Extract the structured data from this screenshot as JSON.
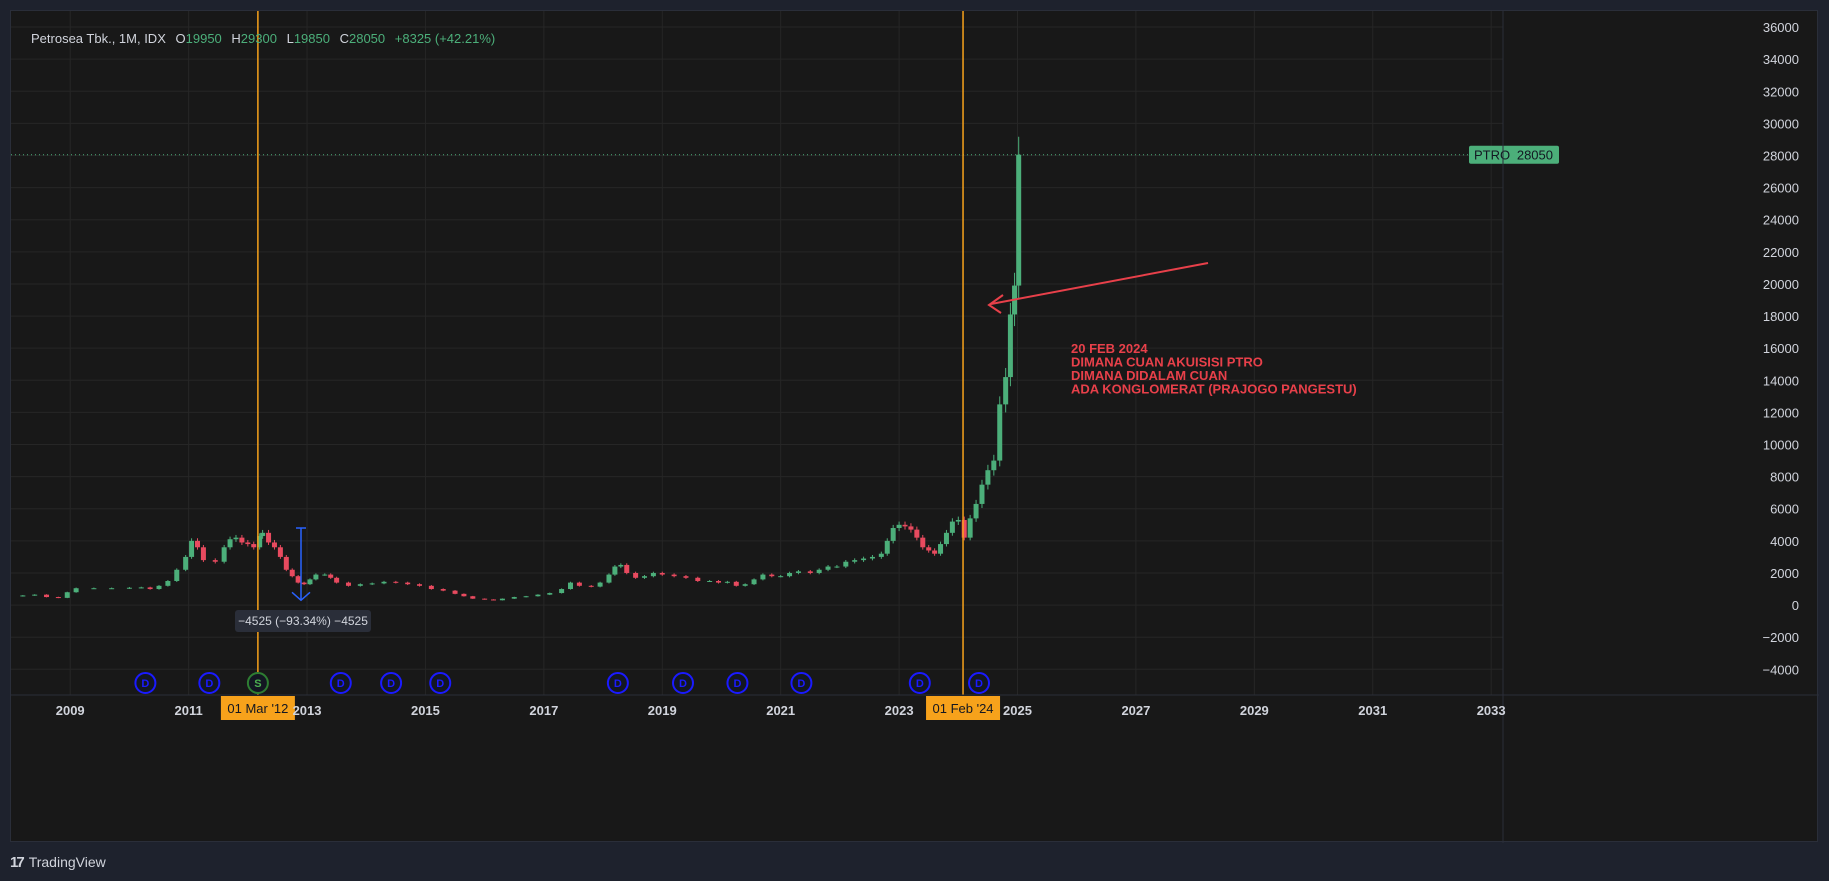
{
  "legend": {
    "symbol": "Petrosea Tbk., 1M, IDX",
    "open_label": "O",
    "open": "19950",
    "high_label": "H",
    "high": "29300",
    "low_label": "L",
    "low": "19850",
    "close_label": "C",
    "close": "28050",
    "change": "+8325 (+42.21%)"
  },
  "price_label": {
    "ticker": "PTRO",
    "value": "28050"
  },
  "measure_label": "−4525 (−93.34%) −4525",
  "annotation_lines": [
    "20 FEB 2024",
    "DIMANA CUAN AKUISISI PTRO",
    "DIMANA DIDALAM CUAN",
    " ADA KONGLOMERAT (PRAJOGO PANGESTU)"
  ],
  "vlines": [
    {
      "x": 2012.17,
      "label": "01 Mar '12"
    },
    {
      "x": 2024.08,
      "label": "01 Feb '24"
    }
  ],
  "events": [
    {
      "x": 2010.27,
      "kind": "D"
    },
    {
      "x": 2011.35,
      "kind": "D"
    },
    {
      "x": 2012.17,
      "kind": "S"
    },
    {
      "x": 2013.57,
      "kind": "D"
    },
    {
      "x": 2014.42,
      "kind": "D"
    },
    {
      "x": 2015.25,
      "kind": "D"
    },
    {
      "x": 2018.25,
      "kind": "D"
    },
    {
      "x": 2019.35,
      "kind": "D"
    },
    {
      "x": 2020.27,
      "kind": "D"
    },
    {
      "x": 2021.35,
      "kind": "D"
    },
    {
      "x": 2023.35,
      "kind": "D"
    },
    {
      "x": 2024.35,
      "kind": "D"
    }
  ],
  "colors": {
    "up": "#4caf7a",
    "down": "#e84a5f",
    "vline": "#f7a21b",
    "annotation": "#e8404a",
    "measure": "#2962ff",
    "event": "#1a1aff",
    "grid": "#262626",
    "axis_text": "#d1d4dc"
  },
  "footer": {
    "brand": "TradingView",
    "logo": "17"
  },
  "chart_data": {
    "type": "candlestick",
    "title": "Petrosea Tbk., 1M, IDX",
    "x_ticks": [
      "2009",
      "2011",
      "2013",
      "2015",
      "2017",
      "2019",
      "2021",
      "2023",
      "2025",
      "2027",
      "2029",
      "2031",
      "2033"
    ],
    "y_ticks": [
      -4000,
      -2000,
      0,
      2000,
      4000,
      6000,
      8000,
      10000,
      12000,
      14000,
      16000,
      18000,
      20000,
      22000,
      24000,
      26000,
      28000,
      30000,
      32000,
      34000,
      36000
    ],
    "xlim": [
      2008.0,
      2033.2
    ],
    "ylim": [
      -5600,
      37000
    ],
    "last_price": 28050,
    "series": [
      {
        "name": "PTRO",
        "points": [
          [
            2008.0,
            550
          ],
          [
            2008.2,
            600
          ],
          [
            2008.4,
            650
          ],
          [
            2008.6,
            500
          ],
          [
            2008.8,
            450
          ],
          [
            2008.95,
            800
          ],
          [
            2009.1,
            1050
          ],
          [
            2009.4,
            1050
          ],
          [
            2009.7,
            1050
          ],
          [
            2010.0,
            1080
          ],
          [
            2010.2,
            1100
          ],
          [
            2010.35,
            1000
          ],
          [
            2010.5,
            1200
          ],
          [
            2010.65,
            1500
          ],
          [
            2010.8,
            2200
          ],
          [
            2010.95,
            3000
          ],
          [
            2011.05,
            4000
          ],
          [
            2011.15,
            3600
          ],
          [
            2011.25,
            2800
          ],
          [
            2011.45,
            2700
          ],
          [
            2011.6,
            3600
          ],
          [
            2011.7,
            4100
          ],
          [
            2011.8,
            4200
          ],
          [
            2011.9,
            3900
          ],
          [
            2012.0,
            3800
          ],
          [
            2012.1,
            3600
          ],
          [
            2012.2,
            4300
          ],
          [
            2012.25,
            4500
          ],
          [
            2012.35,
            3900
          ],
          [
            2012.45,
            3600
          ],
          [
            2012.55,
            3000
          ],
          [
            2012.65,
            2200
          ],
          [
            2012.75,
            1800
          ],
          [
            2012.85,
            1400
          ],
          [
            2012.95,
            1300
          ],
          [
            2013.05,
            1600
          ],
          [
            2013.15,
            1900
          ],
          [
            2013.3,
            1900
          ],
          [
            2013.4,
            1700
          ],
          [
            2013.5,
            1400
          ],
          [
            2013.7,
            1200
          ],
          [
            2013.9,
            1300
          ],
          [
            2014.1,
            1350
          ],
          [
            2014.3,
            1450
          ],
          [
            2014.5,
            1400
          ],
          [
            2014.7,
            1300
          ],
          [
            2014.9,
            1200
          ],
          [
            2015.1,
            1000
          ],
          [
            2015.3,
            900
          ],
          [
            2015.5,
            700
          ],
          [
            2015.65,
            550
          ],
          [
            2015.8,
            400
          ],
          [
            2016.0,
            350
          ],
          [
            2016.15,
            300
          ],
          [
            2016.3,
            400
          ],
          [
            2016.5,
            500
          ],
          [
            2016.7,
            550
          ],
          [
            2016.9,
            650
          ],
          [
            2017.1,
            750
          ],
          [
            2017.3,
            1000
          ],
          [
            2017.45,
            1400
          ],
          [
            2017.6,
            1200
          ],
          [
            2017.8,
            1150
          ],
          [
            2017.95,
            1400
          ],
          [
            2018.1,
            1900
          ],
          [
            2018.2,
            2400
          ],
          [
            2018.3,
            2500
          ],
          [
            2018.4,
            2000
          ],
          [
            2018.55,
            1700
          ],
          [
            2018.7,
            1800
          ],
          [
            2018.85,
            2000
          ],
          [
            2019.0,
            1900
          ],
          [
            2019.2,
            1800
          ],
          [
            2019.4,
            1700
          ],
          [
            2019.6,
            1500
          ],
          [
            2019.8,
            1500
          ],
          [
            2019.95,
            1400
          ],
          [
            2020.1,
            1450
          ],
          [
            2020.25,
            1200
          ],
          [
            2020.4,
            1300
          ],
          [
            2020.55,
            1600
          ],
          [
            2020.7,
            1900
          ],
          [
            2020.85,
            1800
          ],
          [
            2021.0,
            1800
          ],
          [
            2021.15,
            2000
          ],
          [
            2021.3,
            2100
          ],
          [
            2021.5,
            2000
          ],
          [
            2021.65,
            2200
          ],
          [
            2021.8,
            2400
          ],
          [
            2021.95,
            2400
          ],
          [
            2022.1,
            2700
          ],
          [
            2022.25,
            2800
          ],
          [
            2022.4,
            2900
          ],
          [
            2022.55,
            3000
          ],
          [
            2022.7,
            3200
          ],
          [
            2022.8,
            4000
          ],
          [
            2022.9,
            4800
          ],
          [
            2023.0,
            5000
          ],
          [
            2023.1,
            4900
          ],
          [
            2023.2,
            4700
          ],
          [
            2023.3,
            4200
          ],
          [
            2023.4,
            3600
          ],
          [
            2023.5,
            3400
          ],
          [
            2023.6,
            3200
          ],
          [
            2023.7,
            3800
          ],
          [
            2023.8,
            4500
          ],
          [
            2023.9,
            5200
          ],
          [
            2024.0,
            5300
          ],
          [
            2024.1,
            4200
          ],
          [
            2024.2,
            5400
          ],
          [
            2024.3,
            6300
          ],
          [
            2024.4,
            7500
          ],
          [
            2024.5,
            8400
          ],
          [
            2024.6,
            9000
          ],
          [
            2024.7,
            12500
          ],
          [
            2024.8,
            14200
          ],
          [
            2024.88,
            18100
          ],
          [
            2024.95,
            19900
          ],
          [
            2025.02,
            28050
          ]
        ]
      }
    ]
  }
}
